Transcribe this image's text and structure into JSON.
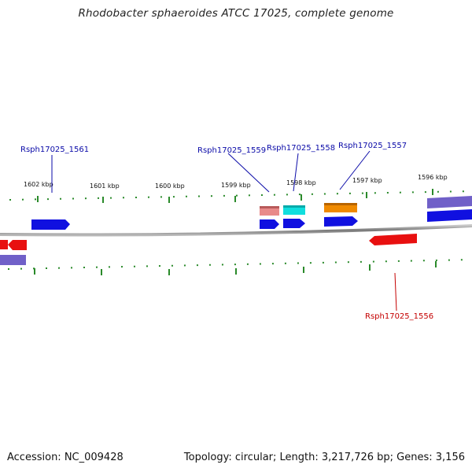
{
  "header": {
    "title": "Rhodobacter sphaeroides ATCC 17025, complete genome"
  },
  "footer": {
    "accession": "Accession: NC_009428",
    "summary": "Topology: circular; Length: 3,217,726 bp; Genes: 3,156"
  },
  "scale_labels": [
    "1602 kbp",
    "1601 kbp",
    "1600 kbp",
    "1599 kbp",
    "1598 kbp",
    "1597 kbp",
    "1596 kbp"
  ],
  "gene_labels": {
    "g1561": "Rsph17025_1561",
    "g1559": "Rsph17025_1559",
    "g1558": "Rsph17025_1558",
    "g1557": "Rsph17025_1557",
    "g1556": "Rsph17025_1556"
  },
  "colors": {
    "forward_label": "#0a0aa8",
    "reverse_label": "#c40000",
    "tick": "#2a8a2a",
    "backbone": "#888888",
    "cds_blue": "#1010e0",
    "cds_red": "#e81010",
    "feature_pink": "#e88a8a",
    "feature_cyan": "#10dede",
    "feature_orange": "#f08a00",
    "feature_lavender": "#7060c8"
  }
}
